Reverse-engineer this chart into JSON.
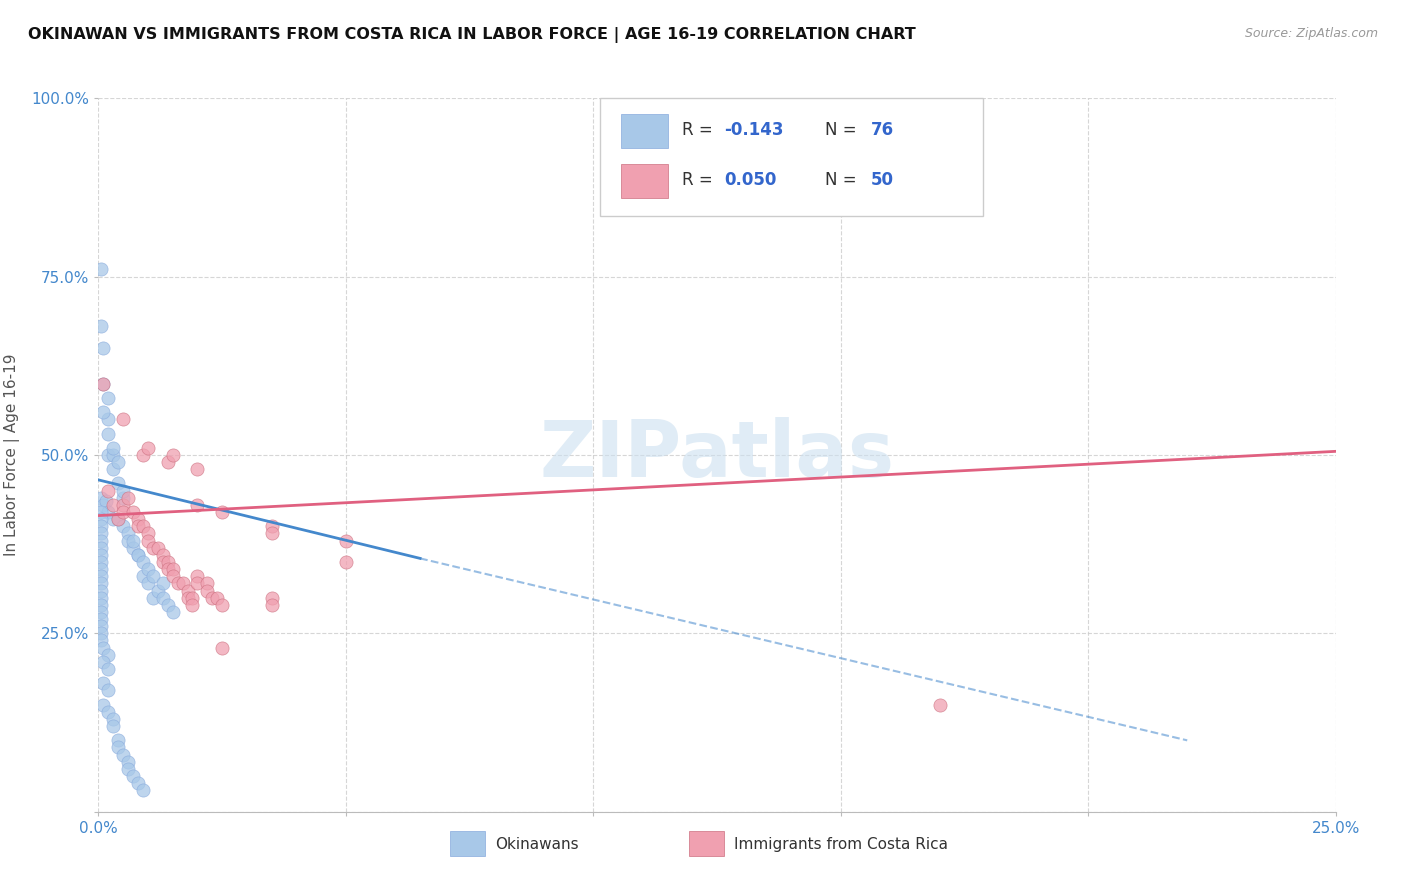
{
  "title": "OKINAWAN VS IMMIGRANTS FROM COSTA RICA IN LABOR FORCE | AGE 16-19 CORRELATION CHART",
  "source": "Source: ZipAtlas.com",
  "ylabel": "In Labor Force | Age 16-19",
  "xlim": [
    0.0,
    0.25
  ],
  "ylim": [
    0.0,
    1.0
  ],
  "xticks": [
    0.0,
    0.05,
    0.1,
    0.15,
    0.2,
    0.25
  ],
  "yticks": [
    0.0,
    0.25,
    0.5,
    0.75,
    1.0
  ],
  "xtick_labels": [
    "0.0%",
    "",
    "",
    "",
    "",
    "25.0%"
  ],
  "ytick_labels": [
    "",
    "25.0%",
    "50.0%",
    "75.0%",
    "100.0%"
  ],
  "legend_blue_r": "-0.143",
  "legend_blue_n": "76",
  "legend_pink_r": "0.050",
  "legend_pink_n": "50",
  "blue_color": "#a8c8e8",
  "pink_color": "#f0a0b0",
  "blue_line_color": "#4488cc",
  "pink_line_color": "#e06080",
  "blue_scatter": [
    [
      0.0005,
      0.44
    ],
    [
      0.001,
      0.43
    ],
    [
      0.0015,
      0.435
    ],
    [
      0.002,
      0.42
    ],
    [
      0.002,
      0.5
    ],
    [
      0.002,
      0.55
    ],
    [
      0.003,
      0.41
    ],
    [
      0.003,
      0.5
    ],
    [
      0.003,
      0.48
    ],
    [
      0.004,
      0.41
    ],
    [
      0.004,
      0.46
    ],
    [
      0.004,
      0.49
    ],
    [
      0.005,
      0.4
    ],
    [
      0.005,
      0.44
    ],
    [
      0.005,
      0.45
    ],
    [
      0.006,
      0.39
    ],
    [
      0.006,
      0.38
    ],
    [
      0.007,
      0.37
    ],
    [
      0.007,
      0.38
    ],
    [
      0.008,
      0.36
    ],
    [
      0.008,
      0.36
    ],
    [
      0.009,
      0.35
    ],
    [
      0.009,
      0.33
    ],
    [
      0.01,
      0.34
    ],
    [
      0.01,
      0.32
    ],
    [
      0.011,
      0.33
    ],
    [
      0.011,
      0.3
    ],
    [
      0.012,
      0.31
    ],
    [
      0.013,
      0.3
    ],
    [
      0.013,
      0.32
    ],
    [
      0.014,
      0.29
    ],
    [
      0.015,
      0.28
    ],
    [
      0.0005,
      0.68
    ],
    [
      0.001,
      0.65
    ],
    [
      0.0005,
      0.76
    ],
    [
      0.0005,
      0.42
    ],
    [
      0.0005,
      0.41
    ],
    [
      0.0005,
      0.4
    ],
    [
      0.0005,
      0.39
    ],
    [
      0.0005,
      0.38
    ],
    [
      0.0005,
      0.37
    ],
    [
      0.0005,
      0.36
    ],
    [
      0.0005,
      0.35
    ],
    [
      0.0005,
      0.34
    ],
    [
      0.0005,
      0.33
    ],
    [
      0.0005,
      0.32
    ],
    [
      0.0005,
      0.31
    ],
    [
      0.0005,
      0.3
    ],
    [
      0.0005,
      0.29
    ],
    [
      0.0005,
      0.28
    ],
    [
      0.0005,
      0.27
    ],
    [
      0.0005,
      0.26
    ],
    [
      0.0005,
      0.25
    ],
    [
      0.0005,
      0.24
    ],
    [
      0.001,
      0.23
    ],
    [
      0.002,
      0.22
    ],
    [
      0.001,
      0.21
    ],
    [
      0.002,
      0.2
    ],
    [
      0.001,
      0.18
    ],
    [
      0.002,
      0.17
    ],
    [
      0.001,
      0.15
    ],
    [
      0.002,
      0.14
    ],
    [
      0.003,
      0.13
    ],
    [
      0.003,
      0.12
    ],
    [
      0.004,
      0.1
    ],
    [
      0.004,
      0.09
    ],
    [
      0.005,
      0.08
    ],
    [
      0.006,
      0.07
    ],
    [
      0.006,
      0.06
    ],
    [
      0.007,
      0.05
    ],
    [
      0.008,
      0.04
    ],
    [
      0.009,
      0.03
    ],
    [
      0.001,
      0.56
    ],
    [
      0.002,
      0.58
    ],
    [
      0.001,
      0.6
    ],
    [
      0.002,
      0.53
    ],
    [
      0.003,
      0.51
    ]
  ],
  "pink_scatter": [
    [
      0.001,
      0.6
    ],
    [
      0.002,
      0.45
    ],
    [
      0.003,
      0.43
    ],
    [
      0.004,
      0.41
    ],
    [
      0.005,
      0.43
    ],
    [
      0.005,
      0.42
    ],
    [
      0.006,
      0.44
    ],
    [
      0.007,
      0.42
    ],
    [
      0.008,
      0.41
    ],
    [
      0.008,
      0.4
    ],
    [
      0.009,
      0.4
    ],
    [
      0.01,
      0.39
    ],
    [
      0.01,
      0.38
    ],
    [
      0.011,
      0.37
    ],
    [
      0.012,
      0.37
    ],
    [
      0.013,
      0.36
    ],
    [
      0.013,
      0.35
    ],
    [
      0.014,
      0.35
    ],
    [
      0.014,
      0.34
    ],
    [
      0.015,
      0.34
    ],
    [
      0.015,
      0.33
    ],
    [
      0.016,
      0.32
    ],
    [
      0.017,
      0.32
    ],
    [
      0.018,
      0.31
    ],
    [
      0.018,
      0.3
    ],
    [
      0.019,
      0.3
    ],
    [
      0.019,
      0.29
    ],
    [
      0.02,
      0.33
    ],
    [
      0.02,
      0.32
    ],
    [
      0.022,
      0.32
    ],
    [
      0.022,
      0.31
    ],
    [
      0.023,
      0.3
    ],
    [
      0.024,
      0.3
    ],
    [
      0.025,
      0.29
    ],
    [
      0.009,
      0.5
    ],
    [
      0.01,
      0.51
    ],
    [
      0.014,
      0.49
    ],
    [
      0.015,
      0.5
    ],
    [
      0.02,
      0.48
    ],
    [
      0.005,
      0.55
    ],
    [
      0.02,
      0.43
    ],
    [
      0.025,
      0.42
    ],
    [
      0.025,
      0.23
    ],
    [
      0.035,
      0.4
    ],
    [
      0.035,
      0.39
    ],
    [
      0.035,
      0.3
    ],
    [
      0.035,
      0.29
    ],
    [
      0.05,
      0.38
    ],
    [
      0.05,
      0.35
    ],
    [
      0.17,
      0.15
    ]
  ],
  "blue_trendline_solid": [
    [
      0.0,
      0.465
    ],
    [
      0.065,
      0.355
    ]
  ],
  "blue_trendline_dashed": [
    [
      0.065,
      0.355
    ],
    [
      0.22,
      0.1
    ]
  ],
  "pink_trendline": [
    [
      0.0,
      0.415
    ],
    [
      0.25,
      0.505
    ]
  ]
}
